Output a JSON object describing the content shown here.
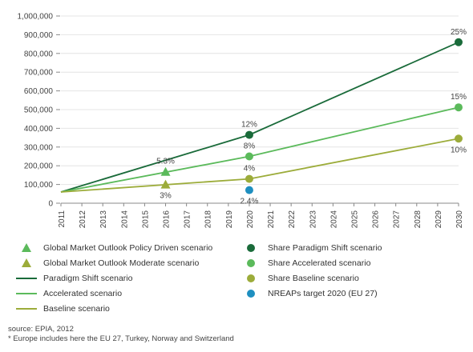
{
  "chart_data": {
    "type": "line",
    "categories": [
      "2011",
      "2012",
      "2013",
      "2014",
      "2015",
      "2016",
      "2017",
      "2018",
      "2019",
      "2020",
      "2021",
      "2022",
      "2023",
      "2024",
      "2025",
      "2026",
      "2027",
      "2028",
      "2029",
      "2030"
    ],
    "ylim": [
      0,
      1000000
    ],
    "yticks": [
      "0",
      "100,000",
      "200,000",
      "300,000",
      "400,000",
      "500,000",
      "600,000",
      "700,000",
      "800,000",
      "900,000",
      "1,000,000"
    ],
    "grid": "horizontal",
    "lines": [
      {
        "name": "Paradigm Shift scenario",
        "color": "#1a6b3a",
        "points": [
          [
            "2011",
            60000
          ],
          [
            "2020",
            365000
          ],
          [
            "2030",
            860000
          ]
        ]
      },
      {
        "name": "Accelerated scenario",
        "color": "#5bba5b",
        "points": [
          [
            "2011",
            60000
          ],
          [
            "2020",
            250000
          ],
          [
            "2030",
            512000
          ]
        ]
      },
      {
        "name": "Baseline scenario",
        "color": "#9cac3a",
        "points": [
          [
            "2011",
            60000
          ],
          [
            "2020",
            130000
          ],
          [
            "2030",
            345000
          ]
        ]
      }
    ],
    "markers": [
      {
        "name": "Global Market Outlook Policy Driven scenario",
        "shape": "triangle",
        "color": "#5bba5b",
        "x": "2016",
        "y": 168000
      },
      {
        "name": "Global Market Outlook Moderate scenario",
        "shape": "triangle",
        "color": "#9cac3a",
        "x": "2016",
        "y": 100000
      },
      {
        "name": "Share Paradigm Shift scenario",
        "shape": "circle",
        "color": "#1a6b3a",
        "x": "2020",
        "y": 365000
      },
      {
        "name": "Share Paradigm Shift scenario",
        "shape": "circle",
        "color": "#1a6b3a",
        "x": "2030",
        "y": 860000
      },
      {
        "name": "Share Accelerated scenario",
        "shape": "circle",
        "color": "#5bba5b",
        "x": "2020",
        "y": 250000
      },
      {
        "name": "Share Accelerated scenario",
        "shape": "circle",
        "color": "#5bba5b",
        "x": "2030",
        "y": 512000
      },
      {
        "name": "Share Baseline scenario",
        "shape": "circle",
        "color": "#9cac3a",
        "x": "2020",
        "y": 130000
      },
      {
        "name": "Share Baseline scenario",
        "shape": "circle",
        "color": "#9cac3a",
        "x": "2030",
        "y": 345000
      },
      {
        "name": "NREAPs target 2020 (EU 27)",
        "shape": "circle",
        "color": "#1e8fc0",
        "x": "2020",
        "y": 70000
      }
    ],
    "annotations": [
      {
        "text": "25%",
        "x": "2030",
        "y": 860000,
        "pos": "above"
      },
      {
        "text": "15%",
        "x": "2030",
        "y": 512000,
        "pos": "above"
      },
      {
        "text": "10%",
        "x": "2030",
        "y": 345000,
        "pos": "below"
      },
      {
        "text": "12%",
        "x": "2020",
        "y": 365000,
        "pos": "above"
      },
      {
        "text": "8%",
        "x": "2020",
        "y": 250000,
        "pos": "above"
      },
      {
        "text": "4%",
        "x": "2020",
        "y": 130000,
        "pos": "above"
      },
      {
        "text": "2.4%",
        "x": "2020",
        "y": 70000,
        "pos": "below"
      },
      {
        "text": "5.3%",
        "x": "2016",
        "y": 168000,
        "pos": "above"
      },
      {
        "text": "3%",
        "x": "2016",
        "y": 100000,
        "pos": "below"
      }
    ]
  },
  "legend": {
    "left": [
      {
        "label": "Global Market Outlook Policy Driven scenario",
        "shape": "triangle",
        "color": "#5bba5b"
      },
      {
        "label": "Global Market Outlook Moderate scenario",
        "shape": "triangle",
        "color": "#9cac3a"
      },
      {
        "label": "Paradigm Shift scenario",
        "shape": "line",
        "color": "#1a6b3a"
      },
      {
        "label": "Accelerated scenario",
        "shape": "line",
        "color": "#5bba5b"
      },
      {
        "label": "Baseline scenario",
        "shape": "line",
        "color": "#9cac3a"
      }
    ],
    "right": [
      {
        "label": "Share Paradigm Shift scenario",
        "shape": "circle",
        "color": "#1a6b3a"
      },
      {
        "label": "Share Accelerated scenario",
        "shape": "circle",
        "color": "#5bba5b"
      },
      {
        "label": "Share Baseline scenario",
        "shape": "circle",
        "color": "#9cac3a"
      },
      {
        "label": "NREAPs target 2020 (EU 27)",
        "shape": "circle",
        "color": "#1e8fc0"
      }
    ]
  },
  "footer": {
    "source": "source: EPIA, 2012",
    "note": "* Europe includes here the EU 27, Turkey, Norway and Switzerland"
  }
}
